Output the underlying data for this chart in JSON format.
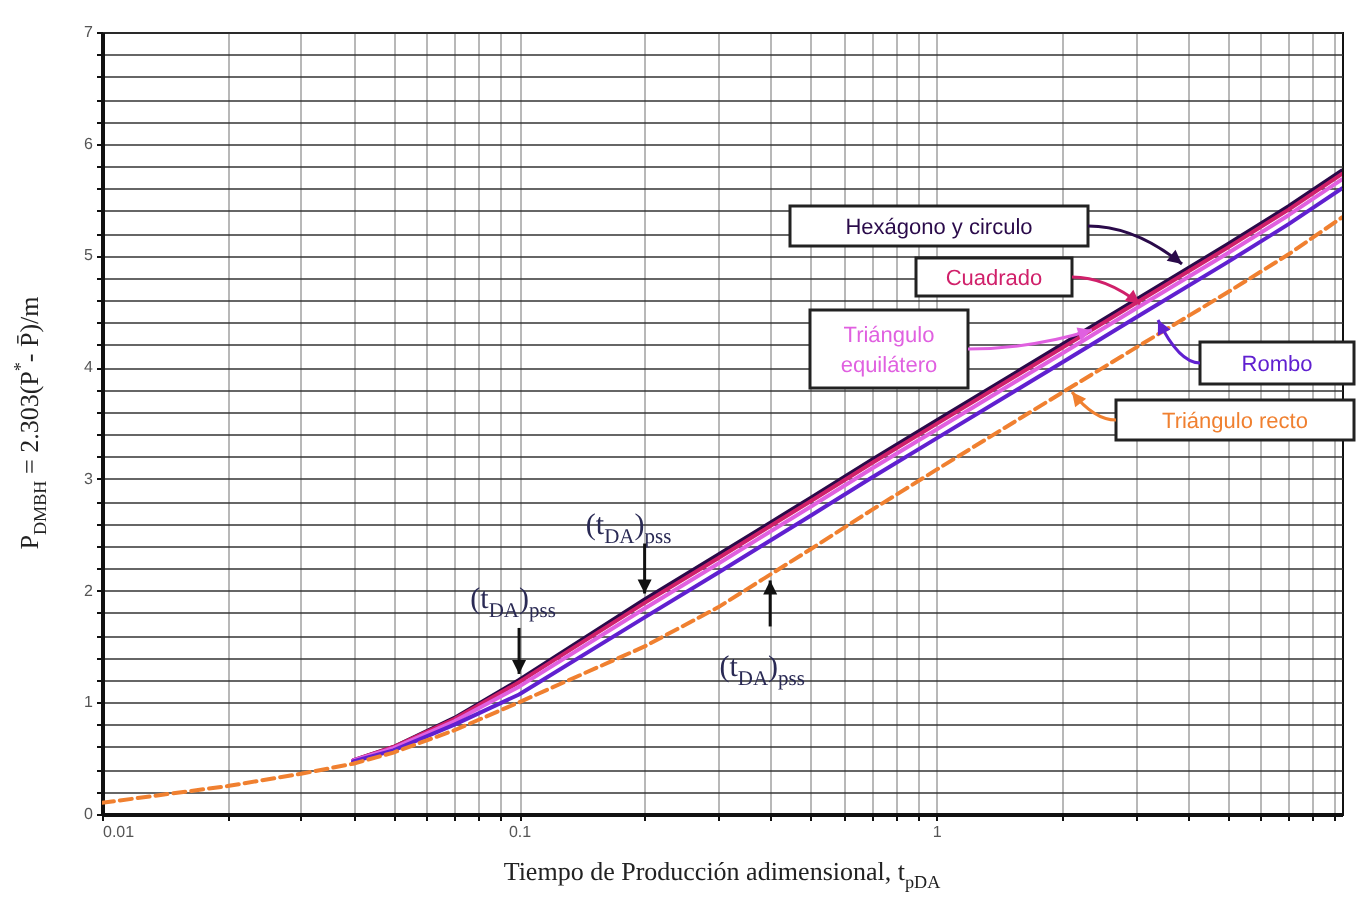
{
  "chart_data": {
    "type": "line",
    "xlabel": "Tiempo de Producción adimensional, t$_{pDA}$",
    "ylabel": "P$_{DMBH}$ = 2.303(P$^{*}$- P̄)/m",
    "x": [
      0.01,
      0.02,
      0.03,
      0.04,
      0.05,
      0.07,
      0.1,
      0.2,
      0.3,
      0.5,
      0.7,
      1,
      2,
      3,
      5,
      7,
      9.4
    ],
    "series": [
      {
        "name": "Hexágono y circulo",
        "color": "#2a0a4a",
        "values": [
          null,
          null,
          null,
          0.48,
          0.6,
          0.86,
          1.2,
          1.92,
          2.32,
          2.83,
          3.17,
          3.52,
          4.2,
          4.6,
          5.1,
          5.44,
          5.76
        ]
      },
      {
        "name": "Cuadrado",
        "color": "#d0206a",
        "values": [
          null,
          null,
          null,
          0.48,
          0.6,
          0.85,
          1.18,
          1.89,
          2.29,
          2.8,
          3.14,
          3.49,
          4.17,
          4.57,
          5.07,
          5.41,
          5.73
        ]
      },
      {
        "name": "Triángulo equilátero",
        "color": "#e060e0",
        "values": [
          null,
          null,
          null,
          0.48,
          0.59,
          0.83,
          1.14,
          1.84,
          2.24,
          2.75,
          3.09,
          3.44,
          4.12,
          4.52,
          5.02,
          5.36,
          5.68
        ]
      },
      {
        "name": "Rombo",
        "color": "#6020d0",
        "values": [
          null,
          null,
          null,
          0.47,
          0.57,
          0.8,
          1.07,
          1.76,
          2.16,
          2.67,
          3.01,
          3.36,
          4.04,
          4.44,
          4.94,
          5.28,
          5.6
        ]
      },
      {
        "name": "Triángulo recto",
        "color": "#f08030",
        "line_style": "dashed",
        "values": [
          0.1,
          0.25,
          0.36,
          0.45,
          0.55,
          0.75,
          1.0,
          1.5,
          1.85,
          2.37,
          2.72,
          3.08,
          3.77,
          4.17,
          4.67,
          5.01,
          5.34
        ]
      }
    ],
    "annotations": [
      {
        "text": "(t$_{DA}$)$_{pss}$",
        "x": 0.1,
        "y": 1.2
      },
      {
        "text": "(t$_{DA}$)$_{pss}$",
        "x": 0.2,
        "y": 1.92
      },
      {
        "text": "(t$_{DA}$)$_{pss}$",
        "x": 0.4,
        "y": 2.18
      }
    ],
    "log": "x",
    "xlim": [
      0.01,
      9.4
    ],
    "xticks": [
      0.01,
      {
        "value": 0.02,
        "label": null
      },
      {
        "value": 0.03,
        "label": null
      },
      {
        "value": 0.04,
        "label": null
      },
      {
        "value": 0.05,
        "label": null
      },
      {
        "value": 0.06,
        "label": null
      },
      {
        "value": 0.07,
        "label": null
      },
      {
        "value": 0.08,
        "label": null
      },
      {
        "value": 0.09,
        "label": null
      },
      0.1,
      {
        "value": 0.2,
        "label": null
      },
      {
        "value": 0.3,
        "label": null
      },
      {
        "value": 0.4,
        "label": null
      },
      {
        "value": 0.5,
        "label": null
      },
      {
        "value": 0.6,
        "label": null
      },
      {
        "value": 0.7,
        "label": null
      },
      {
        "value": 0.8,
        "label": null
      },
      {
        "value": 0.9,
        "label": null
      },
      1,
      {
        "value": 2,
        "label": null
      },
      {
        "value": 3,
        "label": null
      },
      {
        "value": 4,
        "label": null
      },
      {
        "value": 5,
        "label": null
      },
      {
        "value": 6,
        "label": null
      },
      {
        "value": 7,
        "label": null
      },
      {
        "value": 8,
        "label": null
      },
      {
        "value": 9,
        "label": null
      }
    ],
    "ylim": [
      0,
      7
    ],
    "yticks": [
      0,
      {
        "value": 0.2,
        "label": null
      },
      {
        "value": 0.4,
        "label": null
      },
      {
        "value": 0.6,
        "label": null
      },
      {
        "value": 0.8,
        "label": null
      },
      1,
      {
        "value": 1.2,
        "label": null
      },
      {
        "value": 1.4,
        "label": null
      },
      {
        "value": 1.6,
        "label": null
      },
      {
        "value": 1.8,
        "label": null
      },
      2,
      {
        "value": 2.2,
        "label": null
      },
      {
        "value": 2.4,
        "label": null
      },
      {
        "value": 2.6,
        "label": null
      },
      {
        "value": 2.8,
        "label": null
      },
      3,
      {
        "value": 3.2,
        "label": null
      },
      {
        "value": 3.4,
        "label": null
      },
      {
        "value": 3.6,
        "label": null
      },
      {
        "value": 3.8,
        "label": null
      },
      4,
      {
        "value": 4.2,
        "label": null
      },
      {
        "value": 4.4,
        "label": null
      },
      {
        "value": 4.6,
        "label": null
      },
      {
        "value": 4.8,
        "label": null
      },
      5,
      {
        "value": 5.2,
        "label": null
      },
      {
        "value": 5.4,
        "label": null
      },
      {
        "value": 5.6,
        "label": null
      },
      {
        "value": 5.8,
        "label": null
      },
      6,
      {
        "value": 6.2,
        "label": null
      },
      {
        "value": 6.4,
        "label": null
      },
      {
        "value": 6.6,
        "label": null
      },
      {
        "value": 6.8,
        "label": null
      },
      7
    ],
    "grid": true,
    "marker": "none"
  }
}
